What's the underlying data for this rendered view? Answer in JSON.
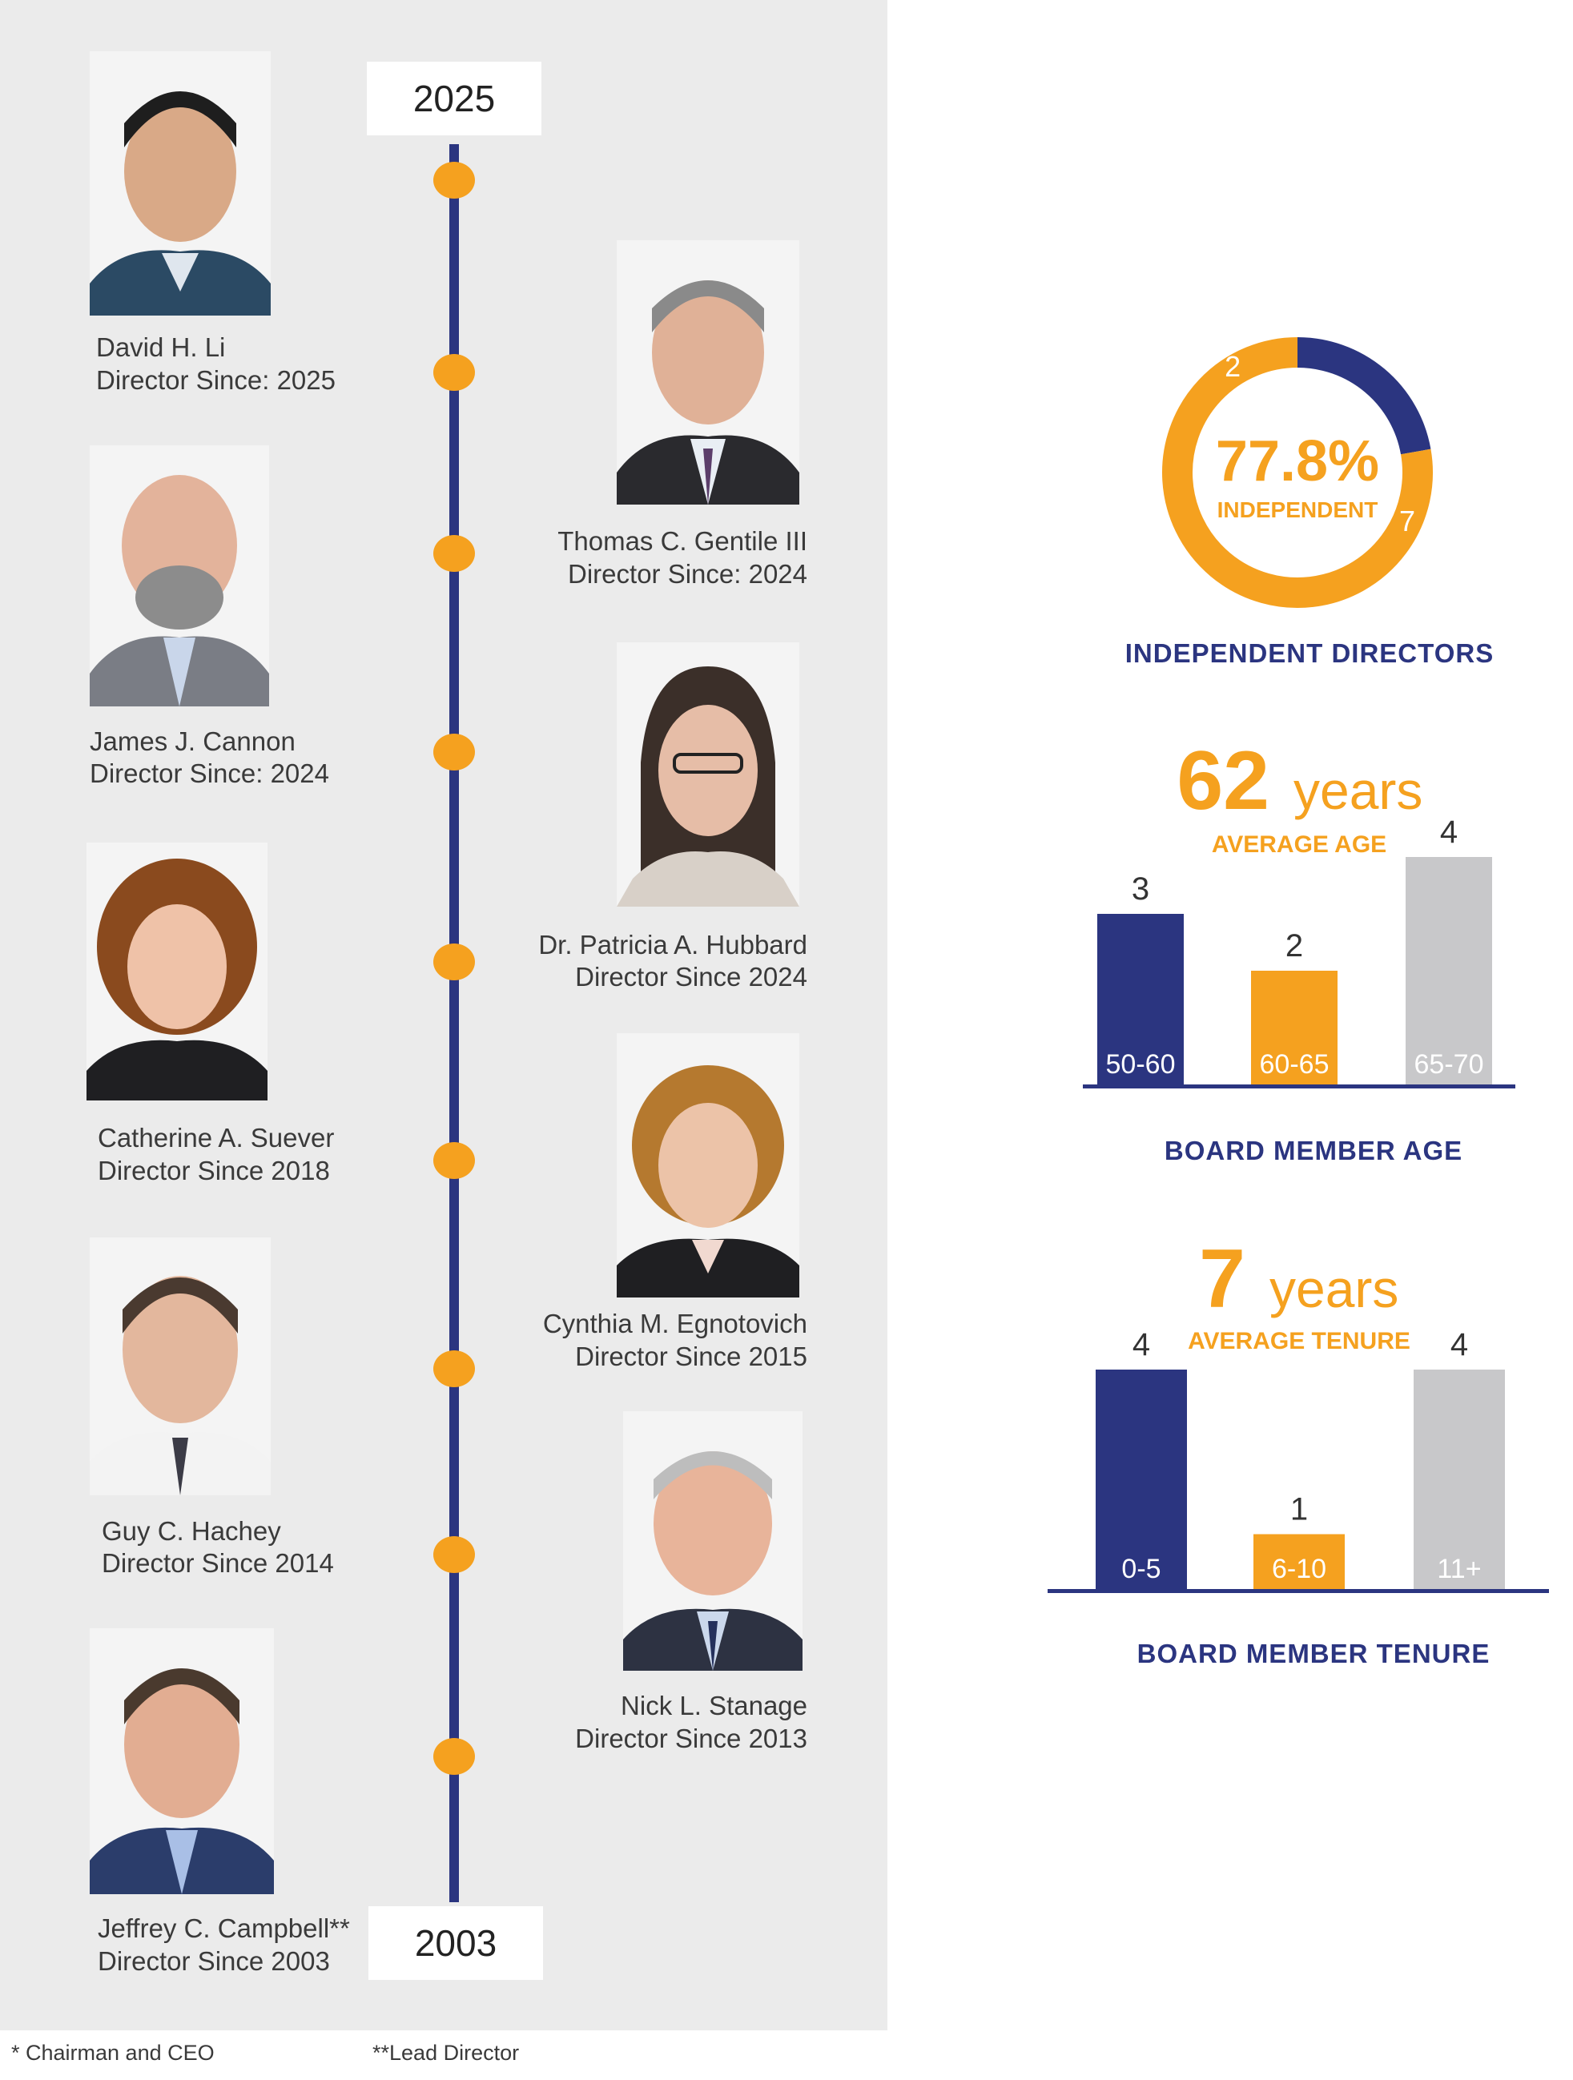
{
  "timeline": {
    "top_year": "2025",
    "bottom_year": "2003"
  },
  "directors": [
    {
      "name": "David H. Li",
      "since": "Director Since: 2025"
    },
    {
      "name": "Thomas C. Gentile III",
      "since": "Director Since: 2024"
    },
    {
      "name": "James J. Cannon",
      "since": "Director Since: 2024"
    },
    {
      "name": "Dr. Patricia A. Hubbard",
      "since": "Director Since 2024"
    },
    {
      "name": "Catherine A. Suever",
      "since": "Director Since 2018"
    },
    {
      "name": "Cynthia M. Egnotovich",
      "since": "Director Since 2015"
    },
    {
      "name": "Guy C. Hachey",
      "since": "Director Since 2014"
    },
    {
      "name": "Nick L. Stanage",
      "since": "Director Since 2013"
    },
    {
      "name": "Jeffrey C. Campbell**",
      "since": "Director Since 2003"
    }
  ],
  "footnotes": {
    "chairman": "* Chairman and CEO",
    "lead": "**Lead Director"
  },
  "colors": {
    "navy": "#2b3580",
    "orange": "#f5a11f",
    "gray": "#c8c8ca",
    "panel": "#ebebeb"
  },
  "chart_data": [
    {
      "type": "pie",
      "title": "INDEPENDENT DIRECTORS",
      "center_value": "77.8%",
      "center_label": "INDEPENDENT",
      "slices": [
        {
          "value": 2,
          "label": "2",
          "color": "#2b3580"
        },
        {
          "value": 7,
          "label": "7",
          "color": "#f5a11f"
        }
      ]
    },
    {
      "type": "bar",
      "title": "BOARD MEMBER AGE",
      "headline_value": "62",
      "headline_unit": "years",
      "headline_label": "AVERAGE AGE",
      "categories": [
        "50-60",
        "60-65",
        "65-70"
      ],
      "values": [
        3,
        2,
        4
      ],
      "value_labels": [
        "3",
        "2",
        "4"
      ],
      "colors": [
        "#2b3580",
        "#f5a11f",
        "#c8c8ca"
      ],
      "ylim": [
        0,
        4
      ]
    },
    {
      "type": "bar",
      "title": "BOARD MEMBER TENURE",
      "headline_value": "7",
      "headline_unit": "years",
      "headline_label": "AVERAGE TENURE",
      "categories": [
        "0-5",
        "6-10",
        "11+"
      ],
      "values": [
        4,
        1,
        4
      ],
      "value_labels": [
        "4",
        "1",
        "4"
      ],
      "colors": [
        "#2b3580",
        "#f5a11f",
        "#c8c8ca"
      ],
      "ylim": [
        0,
        4
      ]
    }
  ]
}
